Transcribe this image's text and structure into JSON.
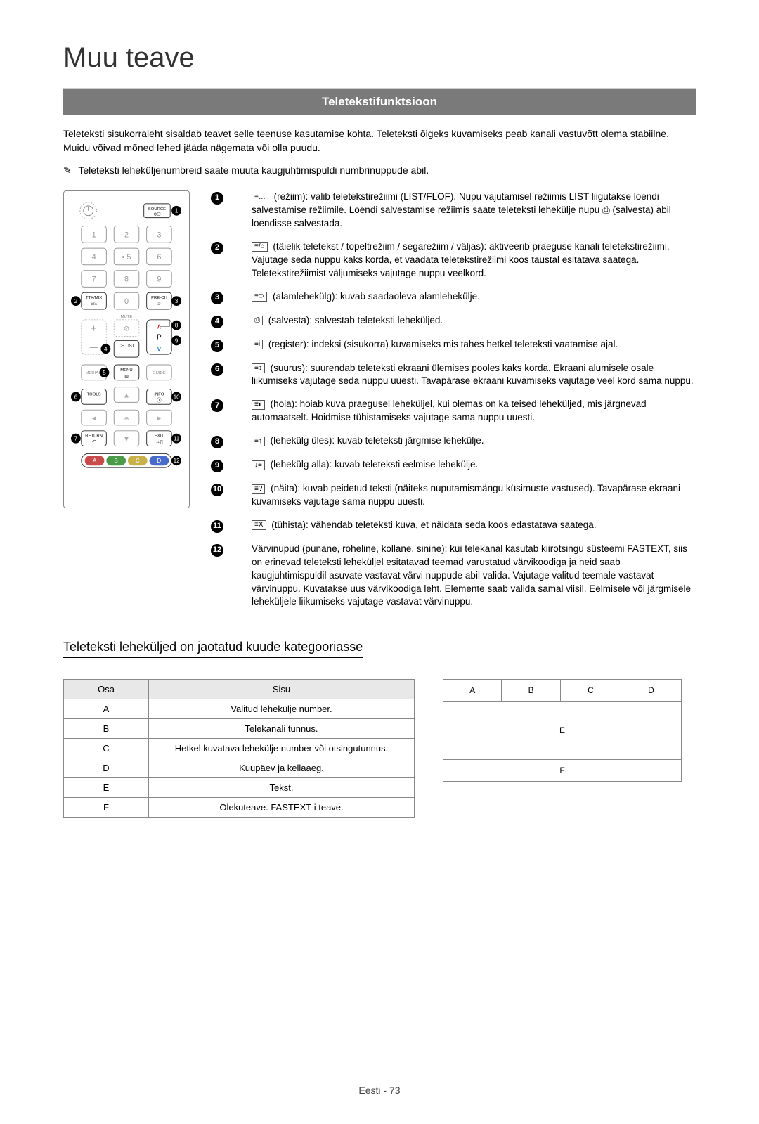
{
  "title": "Muu teave",
  "section_banner": "Teletekstifunktsioon",
  "intro": "Teleteksti sisukorraleht sisaldab teavet selle teenuse kasutamise kohta. Teleteksti õigeks kuvamiseks peab kanali vastuvõtt olema stabiilne. Muidu võivad mõned lehed jääda nägemata või olla puudu.",
  "note": "Teleteksti leheküljenumbreid saate muuta kaugjuhtimispuldi numbrinuppude abil.",
  "note_icon": "✎",
  "remote_labels": {
    "source": "SOURCE",
    "ttxmix": "TTX/MIX",
    "prech": "PRE-CH",
    "mute": "MUTE",
    "chlist": "CH LIST",
    "media": "MEDIA.P",
    "menu": "MENU",
    "guide": "GUIDE",
    "tools": "TOOLS",
    "info": "INFO",
    "return": "RETURN",
    "exit": "EXIT",
    "p": "P"
  },
  "items": [
    {
      "num": "1",
      "icon": "≡…",
      "text": "(režiim): valib teletekstirežiimi (LIST/FLOF). Nupu vajutamisel režiimis LIST liigutakse loendi salvestamise režiimile. Loendi salvestamise režiimis saate teleteksti lehekülje nupu ⎙ (salvesta) abil loendisse salvestada."
    },
    {
      "num": "2",
      "icon": "≡/⌂",
      "text": "(täielik teletekst / topeltrežiim / segarežiim / väljas): aktiveerib praeguse kanali teletekstirežiimi. Vajutage seda nuppu kaks korda, et vaadata teletekstirežiimi koos taustal esitatava saatega. Teletekstirežiimist väljumiseks vajutage nuppu veelkord."
    },
    {
      "num": "3",
      "icon": "≡⊃",
      "text": "(alamlehekülg): kuvab saadaoleva alamlehekülje."
    },
    {
      "num": "4",
      "icon": "⎙",
      "text": "(salvesta): salvestab teleteksti leheküljed."
    },
    {
      "num": "5",
      "icon": "≡i",
      "text": "(register): indeksi (sisukorra) kuvamiseks mis tahes hetkel teleteksti vaatamise ajal."
    },
    {
      "num": "6",
      "icon": "≡↕",
      "text": "(suurus): suurendab teleteksti ekraani ülemises pooles kaks korda. Ekraani alumisele osale liikumiseks vajutage seda nuppu uuesti. Tavapärase ekraani kuvamiseks vajutage veel kord sama nuppu."
    },
    {
      "num": "7",
      "icon": "≡⏸",
      "text": "(hoia): hoiab kuva praegusel leheküljel, kui olemas on ka teised leheküljed, mis järgnevad automaatselt. Hoidmise tühistamiseks vajutage sama nuppu uuesti."
    },
    {
      "num": "8",
      "icon": "≡↑",
      "text": "(lehekülg üles): kuvab teleteksti järgmise lehekülje."
    },
    {
      "num": "9",
      "icon": "↓≡",
      "text": "(lehekülg alla): kuvab teleteksti eelmise lehekülje."
    },
    {
      "num": "10",
      "icon": "≡?",
      "text": "(näita): kuvab peidetud teksti (näiteks nuputamismängu küsimuste vastused). Tavapärase ekraani kuvamiseks vajutage sama nuppu uuesti."
    },
    {
      "num": "11",
      "icon": "≡X",
      "text": "(tühista): vähendab teleteksti kuva, et näidata seda koos edastatava saatega."
    },
    {
      "num": "12",
      "icon": "",
      "text": "Värvinupud (punane, roheline, kollane, sinine): kui telekanal kasutab kiirotsingu süsteemi FASTEXT, siis on erinevad teleteksti leheküljel esitatavad teemad varustatud värvikoodiga ja neid saab kaugjuhtimispuldil asuvate vastavat värvi nuppude abil valida. Vajutage valitud teemale vastavat värvinuppu. Kuvatakse uus värvikoodiga leht. Elemente saab valida samal viisil. Eelmisele või järgmisele leheküljele liikumiseks vajutage vastavat värvinuppu."
    }
  ],
  "subheading": "Teleteksti leheküljed on jaotatud kuude kategooriasse",
  "table_headers": {
    "osa": "Osa",
    "sisu": "Sisu"
  },
  "parts": [
    {
      "osa": "A",
      "sisu": "Valitud lehekülje number."
    },
    {
      "osa": "B",
      "sisu": "Telekanali tunnus."
    },
    {
      "osa": "C",
      "sisu": "Hetkel kuvatava lehekülje number või otsingutunnus."
    },
    {
      "osa": "D",
      "sisu": "Kuupäev ja kellaaeg."
    },
    {
      "osa": "E",
      "sisu": "Tekst."
    },
    {
      "osa": "F",
      "sisu": "Olekuteave. FASTEXT-i teave."
    }
  ],
  "layout_cells": {
    "a": "A",
    "b": "B",
    "c": "C",
    "d": "D",
    "e": "E",
    "f": "F"
  },
  "footer": "Eesti - 73"
}
